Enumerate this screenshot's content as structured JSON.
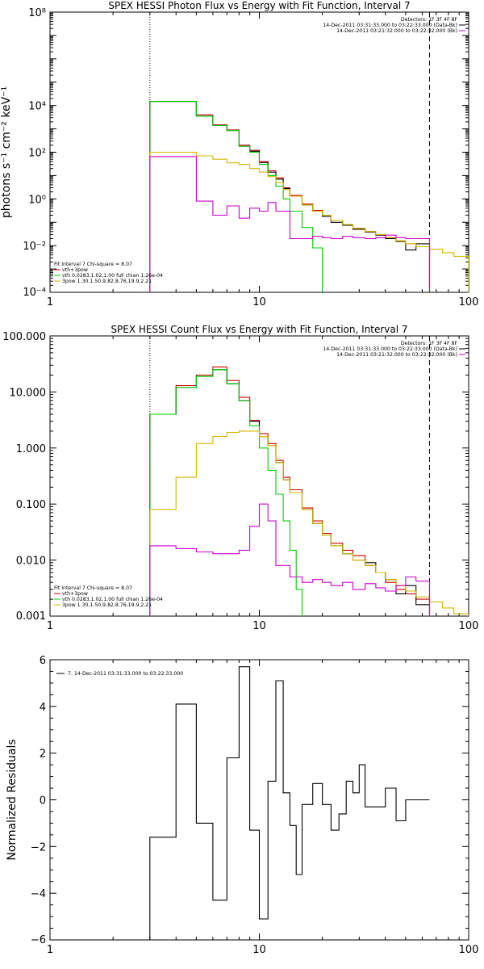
{
  "chart_data": [
    {
      "type": "line",
      "title": "SPEX HESSI Photon Flux vs Energy with Fit Function, Interval 7",
      "ylabel": "photons s⁻¹ cm⁻² keV⁻¹",
      "xlabel": "",
      "xscale": "log",
      "yscale": "log",
      "xlim": [
        1,
        100
      ],
      "ylim": [
        0.0001,
        100000000
      ],
      "xticks": [
        {
          "v": 1,
          "label": "1"
        },
        {
          "v": 10,
          "label": "10"
        },
        {
          "v": 100,
          "label": "100"
        }
      ],
      "yticks": [
        {
          "v": 0.0001,
          "label": "10⁻⁴"
        },
        {
          "v": 0.01,
          "label": "10⁻²"
        },
        {
          "v": 1,
          "label": "10⁰"
        },
        {
          "v": 100,
          "label": "10²"
        },
        {
          "v": 10000,
          "label": "10⁴"
        },
        {
          "v": 100000000,
          "label": "10⁸"
        }
      ],
      "energy_range_lines": [
        3,
        65
      ],
      "header_lines": [
        "Detectors: 1F 3F 4F 8F",
        "14-Dec-2011 03:31:33.000 to 03:22:33.000 (Data-Bk)",
        "14-Dec-2011 03:21:32.000 to 03:22:32.000 (Bk)"
      ],
      "fit_lines": [
        "Fit Interval  7    Chi-square = 8.07",
        "vth+3pow",
        "vth 0.0283,1.02,1.00  full chian 1.26e-04",
        "3pow 1.30,1.50,9.82,8.76,19.9,2.21"
      ],
      "legend_position": "bottom-left",
      "series": [
        {
          "name": "vth+3pow",
          "color": "#cc0000",
          "style": "step",
          "x": [
            3,
            4,
            5,
            6,
            7,
            8,
            9,
            10,
            11,
            12,
            13,
            14,
            16,
            18,
            20,
            22,
            25,
            28,
            32,
            36,
            40,
            45,
            50,
            56,
            65
          ],
          "y": [
            15000,
            15000,
            4000,
            1500,
            900,
            200,
            120,
            40,
            16,
            8,
            3,
            1.4,
            0.6,
            0.32,
            0.2,
            0.12,
            0.08,
            0.055,
            0.04,
            0.03,
            0.022,
            0.016,
            0.012,
            0.009,
            0.007
          ]
        },
        {
          "name": "Data-Bk",
          "color": "#000000",
          "style": "step",
          "x": [
            3,
            4,
            5,
            6,
            7,
            8,
            9,
            10,
            11,
            12,
            13,
            14,
            16,
            18,
            20,
            22,
            25,
            28,
            32,
            36,
            40,
            45,
            50,
            56,
            65
          ],
          "y": [
            15000,
            15000,
            3500,
            1400,
            850,
            180,
            110,
            36,
            14,
            7,
            2.8,
            1.3,
            0.55,
            0.3,
            0.18,
            0.1,
            0.075,
            0.05,
            0.038,
            0.028,
            0.02,
            0.015,
            0.0065,
            0.012,
            0.007
          ]
        },
        {
          "name": "vth",
          "color": "#00cc00",
          "style": "step",
          "x": [
            3,
            4,
            5,
            6,
            7,
            8,
            9,
            10,
            11,
            12,
            13,
            14,
            16,
            18,
            20
          ],
          "y": [
            15000,
            15000,
            3500,
            1400,
            850,
            180,
            100,
            30,
            10,
            3.5,
            1,
            0.3,
            0.06,
            0.008,
            0.0007
          ]
        },
        {
          "name": "3pow",
          "color": "#d4b800",
          "style": "step",
          "x": [
            3,
            4,
            5,
            6,
            7,
            8,
            9,
            10,
            11,
            12,
            13,
            14,
            16,
            18,
            20,
            22,
            25,
            28,
            32,
            36,
            40,
            45,
            50,
            56,
            65,
            75,
            85,
            100
          ],
          "y": [
            100,
            100,
            70,
            50,
            35,
            30,
            20,
            14,
            9,
            5,
            2.5,
            1.3,
            0.55,
            0.3,
            0.2,
            0.12,
            0.08,
            0.055,
            0.04,
            0.03,
            0.022,
            0.016,
            0.012,
            0.009,
            0.007,
            0.005,
            0.0035,
            0.0035
          ]
        },
        {
          "name": "Bk",
          "color": "#cc00cc",
          "style": "step",
          "x": [
            3,
            4,
            5,
            6,
            7,
            8,
            9,
            10,
            11,
            12,
            14,
            16,
            18,
            20,
            22,
            25,
            28,
            32,
            36,
            40,
            45,
            50,
            56,
            65
          ],
          "y": [
            65,
            65,
            0.8,
            0.2,
            0.5,
            0.15,
            0.4,
            0.3,
            0.7,
            0.3,
            0.02,
            0.02,
            0.025,
            0.022,
            0.02,
            0.025,
            0.022,
            0.02,
            0.022,
            0.028,
            0.022,
            0.02,
            0.02,
            0.02
          ]
        }
      ]
    },
    {
      "type": "line",
      "title": "SPEX HESSI Count Flux vs Energy with Fit Function, Interval 7",
      "xlabel": "",
      "ylabel": "",
      "xscale": "log",
      "yscale": "log",
      "xlim": [
        1,
        100
      ],
      "ylim": [
        0.001,
        100
      ],
      "xticks": [
        {
          "v": 1,
          "label": "1"
        },
        {
          "v": 10,
          "label": "10"
        },
        {
          "v": 100,
          "label": "100"
        }
      ],
      "yticks": [
        {
          "v": 0.001,
          "label": "0.001"
        },
        {
          "v": 0.01,
          "label": "0.010"
        },
        {
          "v": 0.1,
          "label": "0.100"
        },
        {
          "v": 1,
          "label": "1.000"
        },
        {
          "v": 10,
          "label": "10.000"
        },
        {
          "v": 100,
          "label": "100.000"
        }
      ],
      "energy_range_lines": [
        3,
        65
      ],
      "header_lines": [
        "Detectors: 1F 3F 4F 8F",
        "14-Dec-2011 03:31:33.000 to 03:22:33.000 (Data-Bk)",
        "14-Dec-2011 03:21:32.000 to 03:22:32.000 (Bk)"
      ],
      "fit_lines": [
        "Fit Interval  7    Chi-square = 8.07",
        "vth+3pow",
        "vth 0.0283,1.02,1.00  full chian 1.26e-04",
        "3pow 1.30,1.50,9.82,8.76,19.9,2.21"
      ],
      "legend_position": "bottom-left",
      "series": [
        {
          "name": "vth+3pow",
          "color": "#cc0000",
          "style": "step",
          "x": [
            3,
            4,
            5,
            6,
            7,
            8,
            9,
            10,
            11,
            12,
            13,
            14,
            16,
            18,
            20,
            22,
            25,
            28,
            32,
            36,
            40,
            45,
            50,
            56,
            65
          ],
          "y": [
            4,
            13,
            20,
            28,
            16,
            8,
            3.1,
            1.8,
            1.2,
            0.6,
            0.3,
            0.18,
            0.085,
            0.05,
            0.03,
            0.02,
            0.015,
            0.012,
            0.008,
            0.006,
            0.004,
            0.003,
            0.0025,
            0.002,
            0.002
          ]
        },
        {
          "name": "Data-Bk",
          "color": "#000000",
          "style": "step",
          "x": [
            3,
            4,
            5,
            6,
            7,
            8,
            9,
            10,
            11,
            12,
            13,
            14,
            16,
            18,
            20,
            22,
            25,
            28,
            32,
            36,
            40,
            45,
            50,
            56,
            65
          ],
          "y": [
            4,
            12,
            19,
            25,
            14,
            7,
            3,
            1.6,
            1.1,
            0.55,
            0.27,
            0.16,
            0.08,
            0.045,
            0.028,
            0.018,
            0.013,
            0.01,
            0.009,
            0.006,
            0.0045,
            0.0025,
            0.0035,
            0.0016,
            0.004
          ]
        },
        {
          "name": "vth",
          "color": "#00cc00",
          "style": "step",
          "x": [
            3,
            4,
            5,
            6,
            7,
            8,
            9,
            10,
            11,
            12,
            13,
            14,
            15,
            16
          ],
          "y": [
            4,
            12,
            19,
            25,
            14,
            7,
            2.5,
            1,
            0.4,
            0.15,
            0.05,
            0.015,
            0.003,
            0.0015
          ]
        },
        {
          "name": "3pow",
          "color": "#d4b800",
          "style": "step",
          "x": [
            3,
            4,
            5,
            6,
            7,
            8,
            9,
            10,
            11,
            12,
            13,
            14,
            16,
            18,
            20,
            22,
            25,
            28,
            32,
            36,
            40,
            45,
            50,
            56,
            65,
            75,
            85,
            100
          ],
          "y": [
            0.08,
            0.3,
            1.2,
            1.6,
            1.9,
            2,
            2,
            1.6,
            1.1,
            0.55,
            0.27,
            0.16,
            0.08,
            0.045,
            0.028,
            0.018,
            0.013,
            0.01,
            0.008,
            0.006,
            0.0045,
            0.0035,
            0.0028,
            0.0022,
            0.0018,
            0.0014,
            0.0011,
            0.0011
          ]
        },
        {
          "name": "Bk",
          "color": "#cc00cc",
          "style": "step",
          "x": [
            3,
            4,
            5,
            6,
            7,
            8,
            9,
            10,
            11,
            12,
            14,
            16,
            18,
            20,
            22,
            25,
            28,
            32,
            36,
            40,
            45,
            50,
            56,
            65
          ],
          "y": [
            0.018,
            0.016,
            0.014,
            0.013,
            0.013,
            0.015,
            0.04,
            0.1,
            0.05,
            0.008,
            0.005,
            0.004,
            0.0045,
            0.004,
            0.0035,
            0.004,
            0.003,
            0.0038,
            0.0032,
            0.0028,
            0.0035,
            0.005,
            0.0042,
            0.0042
          ]
        }
      ]
    },
    {
      "type": "line",
      "title": "",
      "xlabel": "",
      "ylabel": "Normalized Residuals",
      "xscale": "log",
      "yscale": "linear",
      "xlim": [
        1,
        100
      ],
      "ylim": [
        -6,
        6
      ],
      "xticks": [
        {
          "v": 1,
          "label": "1"
        },
        {
          "v": 10,
          "label": "10"
        },
        {
          "v": 100,
          "label": "100"
        }
      ],
      "yticks": [
        {
          "v": -6,
          "label": "−6"
        },
        {
          "v": -4,
          "label": "−4"
        },
        {
          "v": -2,
          "label": "−2"
        },
        {
          "v": 0,
          "label": "0"
        },
        {
          "v": 2,
          "label": "2"
        },
        {
          "v": 4,
          "label": "4"
        },
        {
          "v": 6,
          "label": "6"
        }
      ],
      "legend_position": "top-left",
      "series": [
        {
          "name": "7. 14-Dec-2011 03:31:33.000 to 03:22:33.000",
          "color": "#000000",
          "style": "step",
          "x": [
            3,
            3.5,
            4,
            5,
            6,
            7,
            8,
            9,
            10,
            11,
            12,
            13,
            14,
            15,
            16,
            18,
            20,
            22,
            24,
            26,
            28,
            30,
            32,
            36,
            40,
            45,
            50,
            56,
            65
          ],
          "y": [
            -1.6,
            -1.6,
            4.1,
            -1.0,
            -4.3,
            1.8,
            5.7,
            -1.3,
            -5.1,
            0.8,
            5.1,
            0.3,
            -1.1,
            -3.2,
            -0.2,
            0.7,
            -0.2,
            -1.3,
            -0.6,
            0.8,
            0.3,
            1.5,
            -0.3,
            -0.3,
            0.5,
            -0.9,
            0.0,
            0.0,
            0.0
          ]
        }
      ]
    }
  ]
}
